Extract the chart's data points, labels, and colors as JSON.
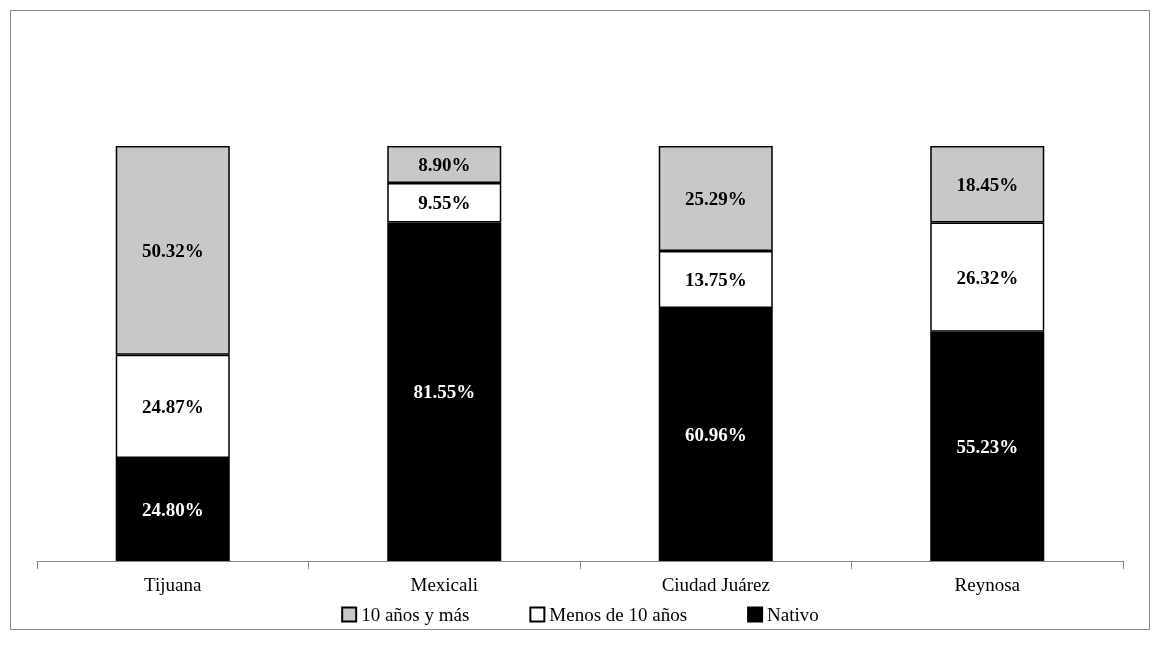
{
  "chart_data": {
    "type": "bar",
    "stacked": true,
    "categories": [
      "Tijuana",
      "Mexicali",
      "Ciudad Juárez",
      "Reynosa"
    ],
    "series": [
      {
        "name": "Nativo",
        "color": "#000000",
        "values": [
          24.8,
          81.55,
          60.96,
          55.23
        ],
        "value_labels": [
          "24.80%",
          "81.55%",
          "60.96%",
          "55.23%"
        ]
      },
      {
        "name": "Menos de 10 años",
        "color": "#ffffff",
        "values": [
          24.87,
          9.55,
          13.75,
          26.32
        ],
        "value_labels": [
          "24.87%",
          "9.55%",
          "13.75%",
          "26.32%"
        ]
      },
      {
        "name": "10 años y más",
        "color": "#c8c8c8",
        "values": [
          50.32,
          8.9,
          25.29,
          18.45
        ],
        "value_labels": [
          "50.32%",
          "8.90%",
          "25.29%",
          "18.45%"
        ]
      }
    ],
    "ylim": [
      0,
      100
    ],
    "tick_labels": "x",
    "grid": false,
    "legend": "bottom"
  }
}
